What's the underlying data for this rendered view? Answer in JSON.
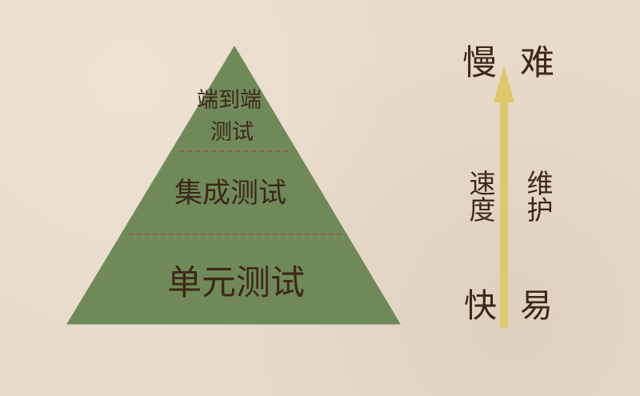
{
  "pyramid": {
    "levels": [
      {
        "label_line1": "端到端",
        "label_line2": "测试"
      },
      {
        "label": "集成测试"
      },
      {
        "label": "单元测试"
      }
    ]
  },
  "scale": {
    "top_left": "慢",
    "top_right": "难",
    "middle_left": "速度",
    "middle_right": "维护",
    "bottom_left": "快",
    "bottom_right": "易"
  },
  "colors": {
    "background": "#e8dbca",
    "pyramid_fill": "#6f8a58",
    "pyramid_stroke": "#6f8a58",
    "divider": "#8f6244",
    "text": "#3f2718",
    "arrow": "#ddc96a"
  }
}
